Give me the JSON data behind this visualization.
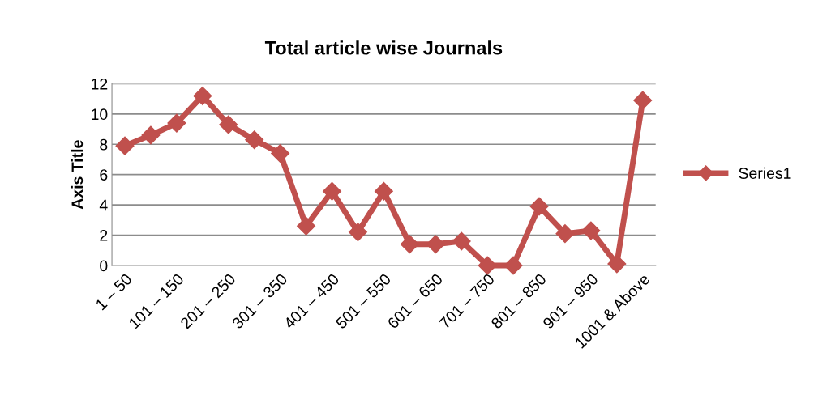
{
  "chart_data": {
    "type": "line",
    "title": "Total article wise Journals",
    "ylabel": "Axis Title",
    "categories": [
      "1 – 50",
      null,
      "101 – 150",
      null,
      "201 – 250",
      null,
      "301 – 350",
      null,
      "401 – 450",
      null,
      "501 – 550",
      null,
      "601 – 650",
      null,
      "701 – 750",
      null,
      "801 – 850",
      null,
      "901 – 950",
      null,
      "1001 & Above"
    ],
    "series": [
      {
        "name": "Series1",
        "color": "#c0504d",
        "values": [
          7.9,
          8.6,
          9.4,
          11.2,
          9.3,
          8.3,
          7.4,
          2.6,
          4.9,
          2.2,
          4.9,
          1.4,
          1.4,
          1.6,
          0,
          0,
          3.9,
          2.1,
          2.3,
          0.1,
          10.9
        ]
      }
    ],
    "ylim": [
      0,
      12
    ],
    "yticks": [
      0,
      2,
      4,
      6,
      8,
      10,
      12
    ],
    "grid": "y",
    "legend": "right",
    "marker": "diamond",
    "line_style": "solid"
  }
}
